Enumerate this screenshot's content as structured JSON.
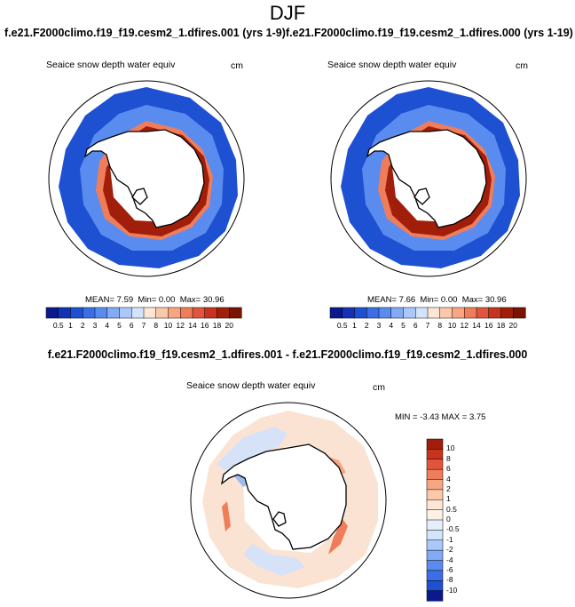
{
  "figure": {
    "title": "DJF",
    "left_case": "f.e21.F2000climo.f19_f19.cesm2_1.dfires.001 (yrs 1-9)",
    "right_case": "f.e21.F2000climo.f19_f19.cesm2_1.dfires.000 (yrs 1-19)",
    "diff_title": "f.e21.F2000climo.f19_f19.cesm2_1.dfires.001 - f.e21.F2000climo.f19_f19.cesm2_1.dfires.000"
  },
  "panels": {
    "left": {
      "field": "Seaice snow depth water equiv",
      "units": "cm",
      "mean_label": "MEAN=",
      "mean": "7.59",
      "min_label": "Min=",
      "min": "0.00",
      "max_label": "Max=",
      "max": "30.96"
    },
    "right": {
      "field": "Seaice snow depth water equiv",
      "units": "cm",
      "mean_label": "MEAN=",
      "mean": "7.66",
      "min_label": "Min=",
      "min": "0.00",
      "max_label": "Max=",
      "max": "30.96"
    },
    "diff": {
      "field": "Seaice snow depth water equiv",
      "units": "cm",
      "min_label": "MIN =",
      "min": "-3.43",
      "max_label": "MAX =",
      "max": "3.75"
    }
  },
  "abs_colorbar": {
    "labels": [
      "0.5",
      "1",
      "2",
      "3",
      "4",
      "5",
      "6",
      "7",
      "8",
      "10",
      "12",
      "14",
      "16",
      "18",
      "20"
    ],
    "colors": [
      "#0a1a8c",
      "#1432b4",
      "#1e50d2",
      "#3c6ee6",
      "#5a8cf0",
      "#82aaf5",
      "#aac8fa",
      "#d2e4fc",
      "#fde6d6",
      "#fcc8aa",
      "#f8a582",
      "#f07d5a",
      "#e1553c",
      "#c8321e",
      "#a01e0a",
      "#781400"
    ]
  },
  "diff_colorbar": {
    "labels": [
      "10",
      "8",
      "6",
      "4",
      "2",
      "1",
      "0.5",
      "0",
      "-0.5",
      "-1",
      "-2",
      "-4",
      "-6",
      "-8",
      "-10"
    ],
    "colors": [
      "#a01e0a",
      "#c8321e",
      "#e1553c",
      "#f07d5a",
      "#f8a582",
      "#fcc8aa",
      "#fde6d6",
      "#fdf0e6",
      "#e6eefc",
      "#d2e4fc",
      "#aac8fa",
      "#82aaf5",
      "#5a8cf0",
      "#3c6ee6",
      "#1e50d2",
      "#0a1a8c"
    ]
  }
}
